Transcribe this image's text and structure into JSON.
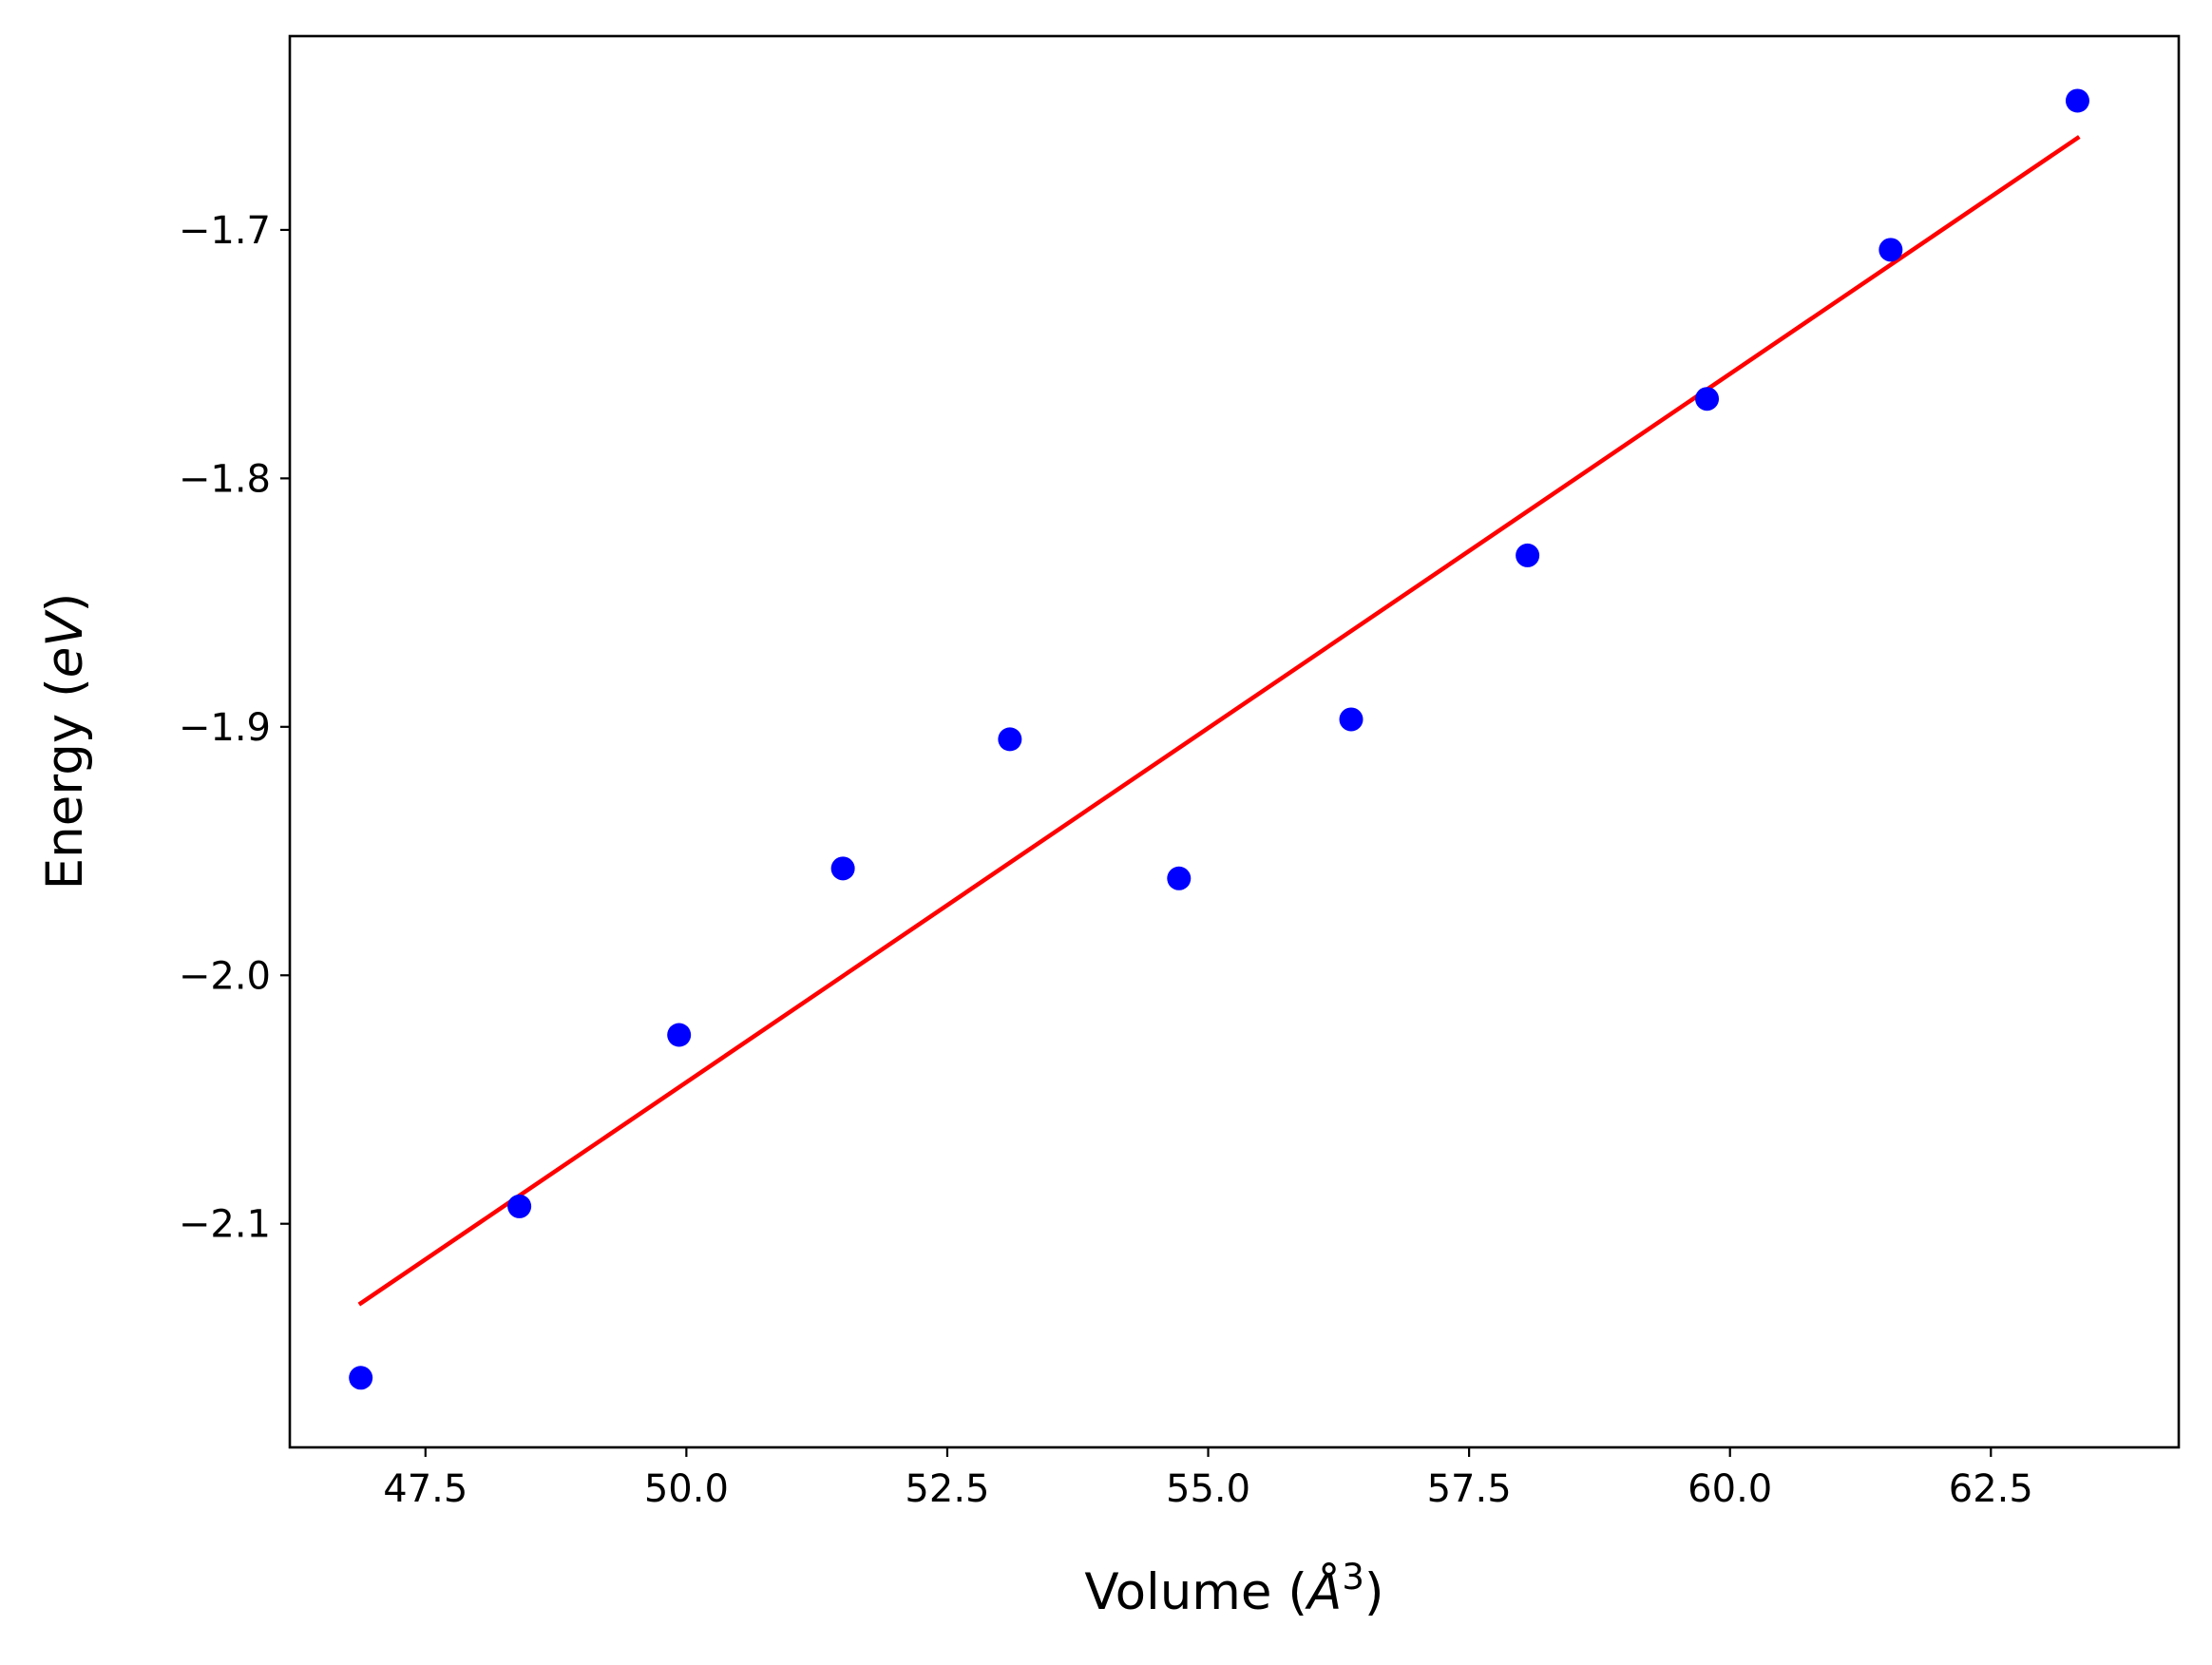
{
  "chart_data": {
    "type": "scatter",
    "xlabel": {
      "prefix": "Volume (",
      "symbol": "Å",
      "superscript": "3",
      "suffix": ")"
    },
    "ylabel": {
      "prefix": "Energy (",
      "italic": "eV",
      "suffix": ")"
    },
    "xlim": [
      46.2,
      64.3
    ],
    "ylim": [
      -2.19,
      -1.622
    ],
    "xticks": [
      47.5,
      50.0,
      52.5,
      55.0,
      57.5,
      60.0,
      62.5
    ],
    "xtick_labels": [
      "47.5",
      "50.0",
      "52.5",
      "55.0",
      "57.5",
      "60.0",
      "62.5"
    ],
    "yticks": [
      -2.1,
      -2.0,
      -1.9,
      -1.8,
      -1.7
    ],
    "ytick_labels": [
      "−2.1",
      "−2.0",
      "−1.9",
      "−1.8",
      "−1.7"
    ],
    "grid": false,
    "legend": "none",
    "series": [
      {
        "kind": "points",
        "color": "#0000ff",
        "x": [
          46.88,
          48.4,
          49.93,
          51.5,
          53.1,
          54.72,
          56.37,
          58.06,
          59.78,
          61.54,
          63.33
        ],
        "y": [
          -2.162,
          -2.093,
          -2.024,
          -1.957,
          -1.905,
          -1.961,
          -1.897,
          -1.831,
          -1.768,
          -1.708,
          -1.648
        ]
      },
      {
        "kind": "fit-line",
        "color": "#ff0000",
        "x": [
          46.88,
          63.33
        ],
        "y": [
          -2.132,
          -1.663
        ]
      }
    ]
  }
}
